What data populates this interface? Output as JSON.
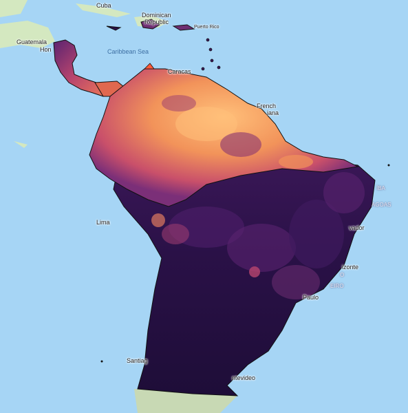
{
  "map": {
    "layer": "heat",
    "colors": {
      "ocean": "#a6d5f5",
      "land": "#d4e8c0",
      "low": "#1e0d38",
      "mid": "#6e2e72",
      "high": "#f2935a",
      "peak": "#ffc07a"
    },
    "labels": {
      "cuba": "Cuba",
      "dominican_republic_1": "Dominican",
      "dominican_republic_2": "Republic",
      "puerto_rico": "Puerto Rico",
      "guatemala": "Guatemala",
      "honduras": "Hon",
      "caribbean_sea": "Caribbean Sea",
      "caracas": "Caracas",
      "french_guiana_1": "French",
      "french_guiana_2": "iana",
      "lima": "Lima",
      "salvador": "vador",
      "belo_horizonte": "izonte",
      "sao_paulo": "Paulo",
      "santiago": "Santiag",
      "montevideo": "ntevideo",
      "paraiba": "ÍBA",
      "alagoas": "AGOAS",
      "rio_1": "O",
      "rio_2": "EIRO"
    }
  }
}
